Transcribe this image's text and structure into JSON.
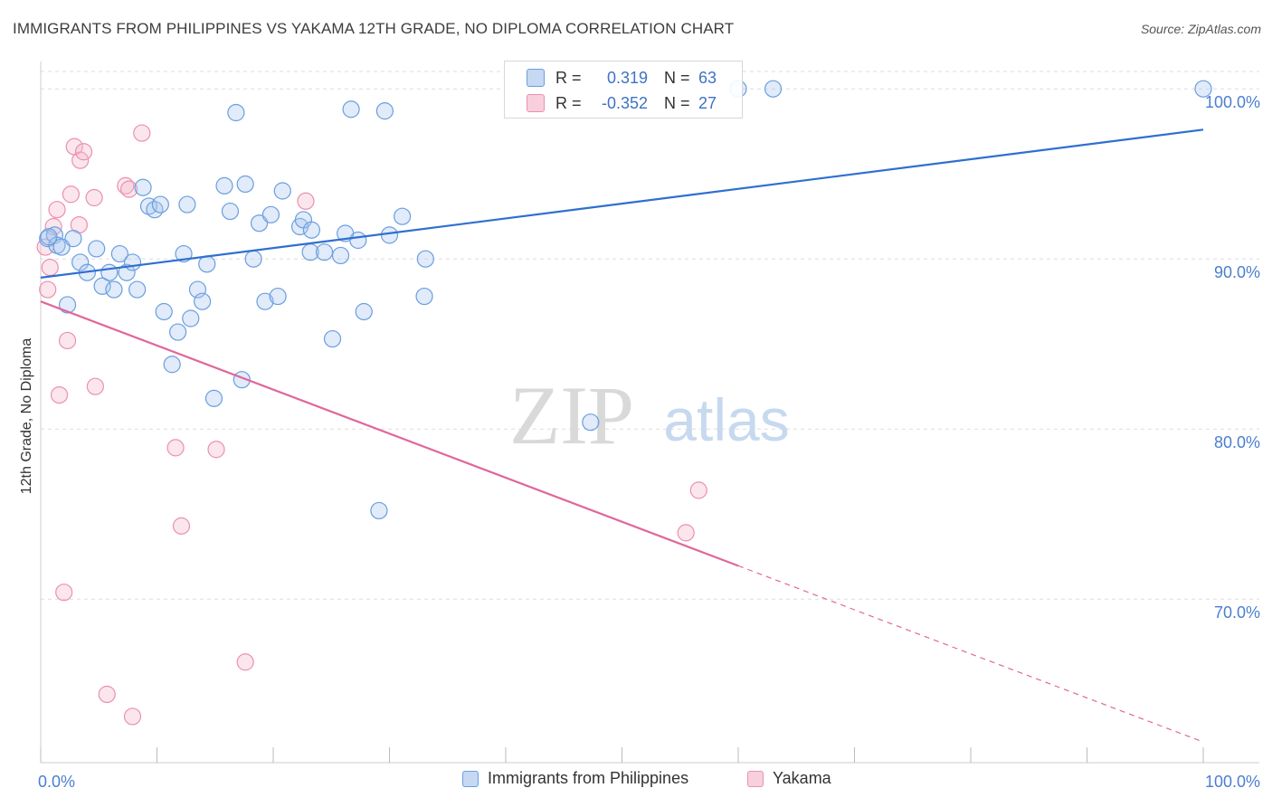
{
  "title": "IMMIGRANTS FROM PHILIPPINES VS YAKAMA 12TH GRADE, NO DIPLOMA CORRELATION CHART",
  "source": "Source: ZipAtlas.com",
  "watermark": {
    "zip": "ZIP",
    "atlas": "atlas"
  },
  "colors": {
    "blue": "#6a9ee0",
    "blue_line": "#2f6fcf",
    "pink": "#ec8fb0",
    "pink_line": "#e0679a",
    "tick_label": "#4a7fd0",
    "grid": "#dddddd"
  },
  "stats": {
    "blue": {
      "r_label": "R =",
      "r_value": "0.319",
      "n_label": "N =",
      "n_value": "63"
    },
    "pink": {
      "r_label": "R =",
      "r_value": "-0.352",
      "n_label": "N =",
      "n_value": "27"
    }
  },
  "chart_data": {
    "type": "scatter",
    "title": "IMMIGRANTS FROM PHILIPPINES VS YAKAMA 12TH GRADE, NO DIPLOMA CORRELATION CHART",
    "xlabel": "",
    "ylabel": "12th Grade, No Diploma",
    "xlim": [
      0,
      100
    ],
    "ylim": [
      61.5,
      101.5
    ],
    "x_tick_labels": [
      "0.0%",
      "100.0%"
    ],
    "y_ticks": [
      70,
      80,
      90,
      100
    ],
    "y_tick_labels": [
      "70.0%",
      "80.0%",
      "90.0%",
      "100.0%"
    ],
    "grid": true,
    "legend_position": "bottom",
    "series": [
      {
        "name": "Immigrants from Philippines",
        "color": "#6a9ee0",
        "trend": {
          "x": [
            0,
            100
          ],
          "y": [
            88.9,
            97.6
          ],
          "dashed_from": null
        },
        "points": [
          [
            0.6,
            91.2
          ],
          [
            1.2,
            91.4
          ],
          [
            1.4,
            90.8
          ],
          [
            1.8,
            90.7
          ],
          [
            2.3,
            87.3
          ],
          [
            2.8,
            91.2
          ],
          [
            3.4,
            89.8
          ],
          [
            4.0,
            89.2
          ],
          [
            4.8,
            90.6
          ],
          [
            5.3,
            88.4
          ],
          [
            5.9,
            89.2
          ],
          [
            6.3,
            88.2
          ],
          [
            6.8,
            90.3
          ],
          [
            7.4,
            89.2
          ],
          [
            7.9,
            89.8
          ],
          [
            8.3,
            88.2
          ],
          [
            8.8,
            94.2
          ],
          [
            9.3,
            93.1
          ],
          [
            9.8,
            92.9
          ],
          [
            10.3,
            93.2
          ],
          [
            10.6,
            86.9
          ],
          [
            11.3,
            83.8
          ],
          [
            11.8,
            85.7
          ],
          [
            12.3,
            90.3
          ],
          [
            12.6,
            93.2
          ],
          [
            12.9,
            86.5
          ],
          [
            13.5,
            88.2
          ],
          [
            13.9,
            87.5
          ],
          [
            14.3,
            89.7
          ],
          [
            14.9,
            81.8
          ],
          [
            15.8,
            94.3
          ],
          [
            16.3,
            92.8
          ],
          [
            16.8,
            98.6
          ],
          [
            17.3,
            82.9
          ],
          [
            17.6,
            94.4
          ],
          [
            18.3,
            90.0
          ],
          [
            18.8,
            92.1
          ],
          [
            19.3,
            87.5
          ],
          [
            19.8,
            92.6
          ],
          [
            20.4,
            87.8
          ],
          [
            20.8,
            94.0
          ],
          [
            22.3,
            91.9
          ],
          [
            22.6,
            92.3
          ],
          [
            23.3,
            91.7
          ],
          [
            23.2,
            90.4
          ],
          [
            24.4,
            90.4
          ],
          [
            25.1,
            85.3
          ],
          [
            25.8,
            90.2
          ],
          [
            26.2,
            91.5
          ],
          [
            26.7,
            98.8
          ],
          [
            27.3,
            91.1
          ],
          [
            27.8,
            86.9
          ],
          [
            29.1,
            75.2
          ],
          [
            29.6,
            98.7
          ],
          [
            30.0,
            91.4
          ],
          [
            31.1,
            92.5
          ],
          [
            33.1,
            90.0
          ],
          [
            33.0,
            87.8
          ],
          [
            47.3,
            80.4
          ],
          [
            60.0,
            100.0
          ],
          [
            63.0,
            100.0
          ],
          [
            100.0,
            100.0
          ],
          [
            0.7,
            91.3
          ]
        ]
      },
      {
        "name": "Yakama",
        "color": "#ec8fb0",
        "trend": {
          "x": [
            0,
            100
          ],
          "y": [
            87.5,
            61.6
          ],
          "dashed_from": 60
        },
        "points": [
          [
            0.4,
            90.7
          ],
          [
            0.6,
            88.2
          ],
          [
            0.8,
            89.5
          ],
          [
            1.1,
            91.9
          ],
          [
            1.4,
            92.9
          ],
          [
            1.6,
            82.0
          ],
          [
            2.0,
            70.4
          ],
          [
            2.3,
            85.2
          ],
          [
            2.6,
            93.8
          ],
          [
            2.9,
            96.6
          ],
          [
            3.3,
            92.0
          ],
          [
            3.4,
            95.8
          ],
          [
            3.7,
            96.3
          ],
          [
            4.6,
            93.6
          ],
          [
            4.7,
            82.5
          ],
          [
            5.7,
            64.4
          ],
          [
            7.3,
            94.3
          ],
          [
            7.6,
            94.1
          ],
          [
            7.9,
            63.1
          ],
          [
            8.7,
            97.4
          ],
          [
            11.6,
            78.9
          ],
          [
            12.1,
            74.3
          ],
          [
            15.1,
            78.8
          ],
          [
            17.6,
            66.3
          ],
          [
            22.8,
            93.4
          ],
          [
            55.5,
            73.9
          ],
          [
            56.6,
            76.4
          ]
        ]
      }
    ]
  },
  "legend": {
    "blue": "Immigrants from Philippines",
    "pink": "Yakama"
  }
}
